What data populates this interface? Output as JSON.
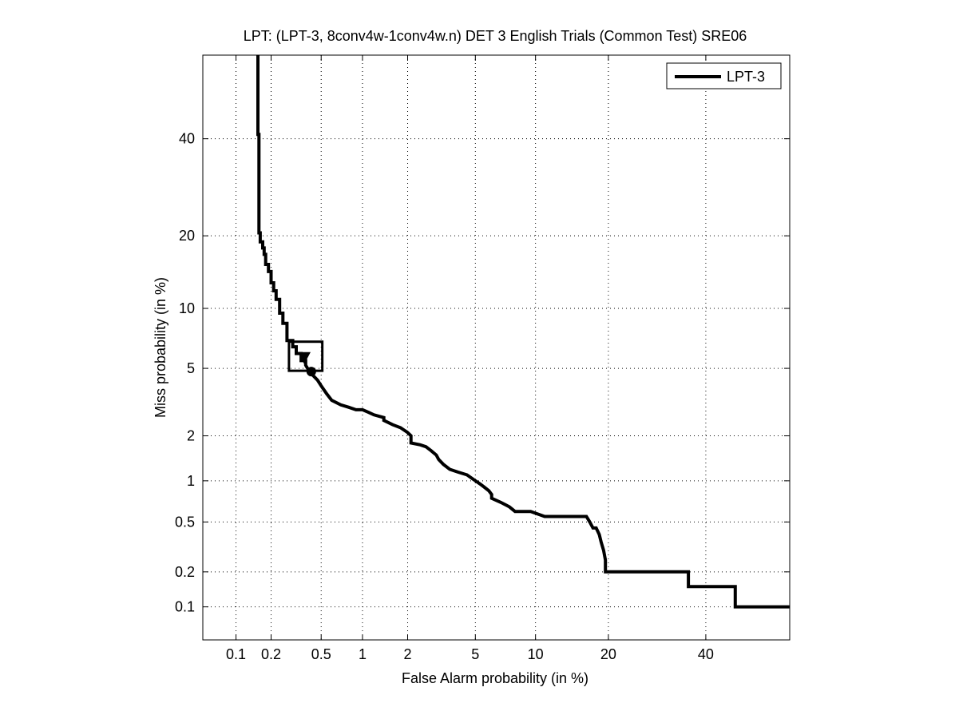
{
  "chart_data": {
    "type": "line",
    "title": "LPT: (LPT-3, 8conv4w-1conv4w.n) DET 3 English Trials (Common Test) SRE06",
    "xlabel": "False Alarm probability (in %)",
    "ylabel": "Miss probability (in %)",
    "x_scale": "probit",
    "y_scale": "probit",
    "xlim": [
      0.05,
      60
    ],
    "ylim": [
      0.05,
      60
    ],
    "grid": true,
    "grid_style": "dotted",
    "x_ticks": [
      0.1,
      0.2,
      0.5,
      1,
      2,
      5,
      10,
      20,
      40
    ],
    "x_tick_labels": [
      "0.1",
      "0.2",
      "0.5",
      "1",
      "2",
      "5",
      "10",
      "20",
      "40"
    ],
    "y_ticks": [
      0.1,
      0.2,
      0.5,
      1,
      2,
      5,
      10,
      20,
      40
    ],
    "y_tick_labels": [
      "0.1",
      "0.2",
      "0.5",
      "1",
      "2",
      "5",
      "10",
      "20",
      "40"
    ],
    "legend": {
      "position": "top-right",
      "entries": [
        "LPT-3"
      ]
    },
    "series": [
      {
        "name": "LPT-3",
        "color": "#000000",
        "x": [
          0.155,
          0.155,
          0.158,
          0.158,
          0.162,
          0.162,
          0.17,
          0.17,
          0.175,
          0.175,
          0.18,
          0.18,
          0.19,
          0.19,
          0.2,
          0.2,
          0.21,
          0.21,
          0.22,
          0.22,
          0.235,
          0.235,
          0.25,
          0.25,
          0.27,
          0.27,
          0.3,
          0.3,
          0.32,
          0.32,
          0.35,
          0.35,
          0.38,
          0.38,
          0.4,
          0.43,
          0.47,
          0.5,
          0.55,
          0.6,
          0.7,
          0.8,
          0.9,
          1.0,
          1.1,
          1.2,
          1.4,
          1.4,
          1.6,
          1.8,
          2.0,
          2.1,
          2.1,
          2.4,
          2.6,
          2.8,
          3.0,
          3.1,
          3.3,
          3.6,
          4.0,
          4.5,
          5.0,
          5.3,
          5.6,
          5.9,
          6.1,
          6.1,
          6.8,
          7.5,
          8.0,
          8.0,
          9.5,
          11.0,
          11.0,
          14.0,
          16.5,
          17.0,
          17.5,
          18.0,
          18.5,
          18.8,
          19.2,
          19.5,
          19.5,
          20.5,
          20.5,
          36.0,
          36.0,
          47.0,
          47.0,
          60.0
        ],
        "y": [
          60.0,
          41.0,
          41.0,
          20.5,
          20.5,
          19.0,
          19.0,
          18.0,
          18.0,
          17.0,
          17.0,
          15.5,
          15.5,
          14.5,
          14.5,
          13.0,
          13.0,
          12.0,
          12.0,
          11.0,
          11.0,
          9.5,
          9.5,
          8.5,
          8.5,
          7.0,
          7.0,
          6.5,
          6.5,
          6.0,
          6.0,
          5.5,
          5.5,
          5.2,
          4.9,
          4.6,
          4.3,
          4.0,
          3.6,
          3.3,
          3.1,
          3.0,
          2.9,
          2.9,
          2.8,
          2.7,
          2.6,
          2.5,
          2.35,
          2.25,
          2.1,
          2.0,
          1.8,
          1.75,
          1.7,
          1.6,
          1.5,
          1.4,
          1.3,
          1.2,
          1.15,
          1.1,
          1.0,
          0.95,
          0.9,
          0.85,
          0.8,
          0.75,
          0.7,
          0.65,
          0.6,
          0.6,
          0.6,
          0.55,
          0.55,
          0.55,
          0.55,
          0.5,
          0.45,
          0.45,
          0.4,
          0.35,
          0.3,
          0.25,
          0.2,
          0.2,
          0.2,
          0.2,
          0.15,
          0.15,
          0.1,
          0.1
        ]
      }
    ],
    "markers": [
      {
        "shape": "square",
        "x": [
          0.28,
          0.51
        ],
        "y": [
          4.85,
          6.9
        ]
      },
      {
        "shape": "triangle-down",
        "x": 0.37,
        "y": 5.7
      },
      {
        "shape": "circle",
        "x": 0.42,
        "y": 4.8
      }
    ]
  }
}
